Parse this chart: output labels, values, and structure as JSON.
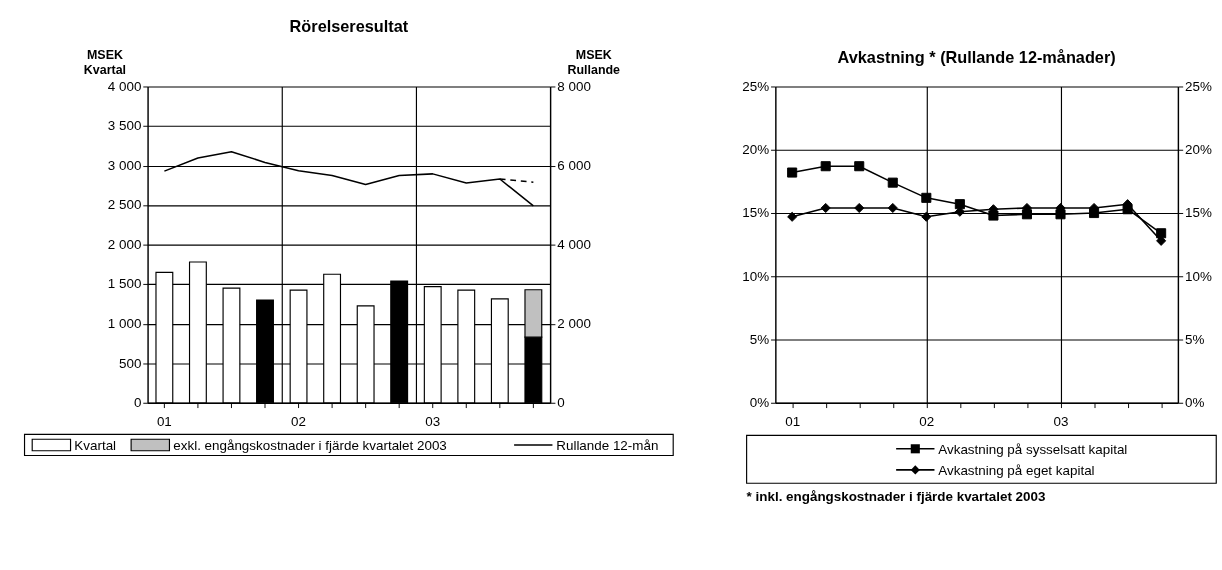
{
  "chart_data": [
    {
      "type": "bar",
      "title": "Rörelseresultat",
      "ylabel": "MSEK\nKvartal",
      "y2label": "MSEK\nRullande",
      "categories": [
        "01",
        null,
        null,
        null,
        "02",
        null,
        null,
        null,
        "03",
        null,
        null,
        null
      ],
      "stacked": true,
      "grid": true,
      "legend": "bottom",
      "ylim": [
        0,
        4000
      ],
      "yticks": [
        0,
        500,
        {
          "value": 1000,
          "label": "1 000"
        },
        {
          "value": 1500,
          "label": "1 500"
        },
        {
          "value": 2000,
          "label": "2 000"
        },
        {
          "value": 2500,
          "label": "2 500"
        },
        {
          "value": 3000,
          "label": "3 000"
        },
        {
          "value": 3500,
          "label": "3 500"
        },
        {
          "value": 4000,
          "label": "4 000"
        }
      ],
      "y2lim": [
        0,
        8000
      ],
      "y2ticks": [
        0,
        {
          "value": 2000,
          "label": "2 000"
        },
        {
          "value": 4000,
          "label": "4 000"
        },
        {
          "value": 6000,
          "label": "6 000"
        },
        {
          "value": 8000,
          "label": "8 000"
        }
      ],
      "series": [
        {
          "name": "Kvartal",
          "type": "bar",
          "color": "#ffffff",
          "colors": [
            "#ffffff",
            "#ffffff",
            "#ffffff",
            "#000000",
            "#ffffff",
            "#ffffff",
            "#ffffff",
            "#000000",
            "#ffffff",
            "#ffffff",
            "#ffffff",
            "#000000"
          ],
          "values": [
            1650,
            1780,
            1450,
            1300,
            1425,
            1625,
            1225,
            1540,
            1470,
            1425,
            1315,
            830
          ]
        },
        {
          "name": "exkl. engångskostnader i fjärde kvartalet 2003",
          "type": "bar",
          "color": "#c0c0c0",
          "values": [
            null,
            null,
            null,
            null,
            null,
            null,
            null,
            null,
            null,
            null,
            null,
            600
          ]
        },
        {
          "name": "Rullande 12-mån",
          "type": "line",
          "axis": "y2",
          "color": "#000000",
          "line_style": "solid",
          "values": [
            5860,
            6190,
            6350,
            6080,
            5870,
            5750,
            5520,
            5750,
            5790,
            5560,
            5660,
            4980
          ]
        },
        {
          "type": "line",
          "axis": "y2",
          "color": "#000000",
          "line_style": "dashed",
          "values": [
            null,
            null,
            null,
            null,
            null,
            null,
            null,
            null,
            null,
            null,
            5660,
            5580
          ]
        }
      ]
    },
    {
      "type": "line",
      "title": "Avkastning * (Rullande 12-månader)",
      "categories": [
        "01",
        null,
        null,
        null,
        "02",
        null,
        null,
        null,
        "03",
        null,
        null,
        null
      ],
      "grid": true,
      "legend": "bottom",
      "ylim": [
        0,
        25
      ],
      "yticks": [
        {
          "value": 0,
          "label": "0%"
        },
        {
          "value": 5,
          "label": "5%"
        },
        {
          "value": 10,
          "label": "10%"
        },
        {
          "value": 15,
          "label": "15%"
        },
        {
          "value": 20,
          "label": "20%"
        },
        {
          "value": 25,
          "label": "25%"
        }
      ],
      "y2lim": [
        0,
        25
      ],
      "y2ticks": [
        {
          "value": 0,
          "label": "0%"
        },
        {
          "value": 5,
          "label": "5%"
        },
        {
          "value": 10,
          "label": "10%"
        },
        {
          "value": 15,
          "label": "15%"
        },
        {
          "value": 20,
          "label": "20%"
        },
        {
          "value": 25,
          "label": "25%"
        }
      ],
      "series": [
        {
          "name": "Avkastning på sysselsatt kapital",
          "color": "#000000",
          "marker": "square",
          "values": [
            18.2,
            18.7,
            18.7,
            17.4,
            16.2,
            15.7,
            14.8,
            14.9,
            14.9,
            15.0,
            15.3,
            13.4
          ]
        },
        {
          "name": "Avkastning på eget kapital",
          "color": "#000000",
          "marker": "diamond",
          "values": [
            14.7,
            15.4,
            15.4,
            15.4,
            14.7,
            15.1,
            15.3,
            15.4,
            15.4,
            15.4,
            15.7,
            12.8
          ]
        }
      ],
      "annotations": [
        "* inkl. engångskostnader i fjärde kvartalet 2003"
      ]
    }
  ]
}
